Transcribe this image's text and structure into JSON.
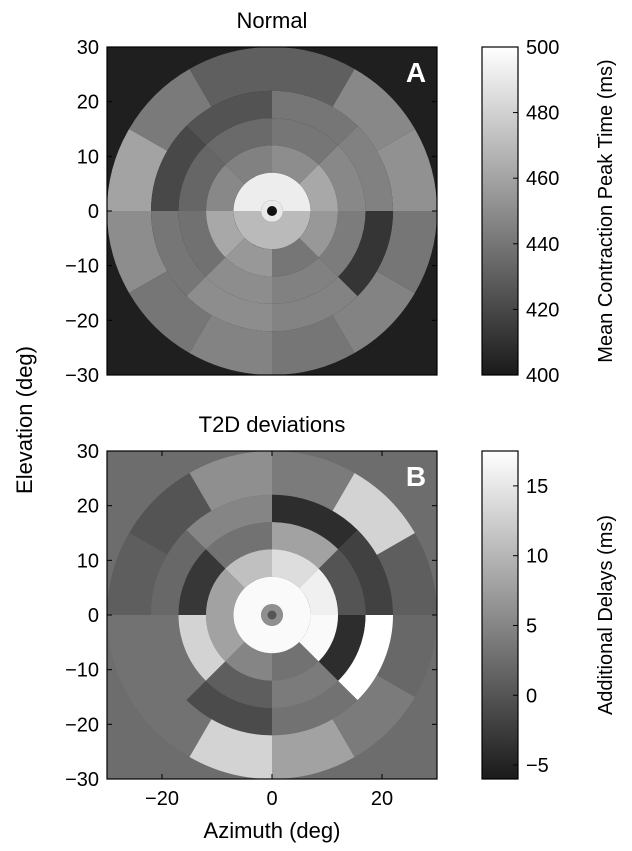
{
  "figure": {
    "shared_ylabel": "Elevation (deg)",
    "shared_xlabel": "Azimuth (deg)"
  },
  "chart_data": [
    {
      "type": "heatmap",
      "title": "Normal",
      "panel_label": "A",
      "xlabel": "",
      "ylabel": "Elevation (deg)",
      "xlim": [
        -30,
        30
      ],
      "ylim": [
        -30,
        30
      ],
      "yticks": [
        "30",
        "20",
        "10",
        "0",
        "−10",
        "−20",
        "−30"
      ],
      "ytick_values": [
        30,
        20,
        10,
        0,
        -10,
        -20,
        -30
      ],
      "background_value": 402,
      "center_dot": true,
      "rings": [
        {
          "r_inner": 0,
          "r_outer": 2,
          "sectors": 1,
          "start_deg": 0,
          "values": [
            490
          ]
        },
        {
          "r_inner": 2,
          "r_outer": 7,
          "sectors": 2,
          "start_deg": 0,
          "values": [
            492,
            470
          ]
        },
        {
          "r_inner": 7,
          "r_outer": 12,
          "sectors": 8,
          "start_deg": 0,
          "values": [
            462,
            450,
            445,
            448,
            462,
            455,
            440,
            455
          ]
        },
        {
          "r_inner": 12,
          "r_outer": 17,
          "sectors": 8,
          "start_deg": 0,
          "values": [
            448,
            440,
            435,
            433,
            438,
            450,
            445,
            443
          ]
        },
        {
          "r_inner": 17,
          "r_outer": 22,
          "sectors": 8,
          "start_deg": 0,
          "values": [
            445,
            440,
            425,
            420,
            440,
            450,
            446,
            412
          ]
        },
        {
          "r_inner": 22,
          "r_outer": 30,
          "sectors": 12,
          "start_deg": 0,
          "values": [
            452,
            448,
            430,
            430,
            442,
            460,
            450,
            440,
            446,
            440,
            446,
            440
          ]
        }
      ],
      "colorbar": {
        "label": "Mean Contraction Peak Time (ms)",
        "min": 400,
        "max": 500,
        "ticks": [
          400,
          420,
          440,
          460,
          480,
          500
        ]
      }
    },
    {
      "type": "heatmap",
      "title": "T2D deviations",
      "panel_label": "B",
      "xlabel": "Azimuth (deg)",
      "ylabel": "Elevation (deg)",
      "xlim": [
        -30,
        30
      ],
      "ylim": [
        -30,
        30
      ],
      "xticks": [
        "−20",
        "0",
        "20"
      ],
      "xtick_values": [
        -20,
        0,
        20
      ],
      "yticks": [
        "30",
        "20",
        "10",
        "0",
        "−10",
        "−20",
        "−30"
      ],
      "ytick_values": [
        30,
        20,
        10,
        0,
        -10,
        -20,
        -30
      ],
      "background_value": 2.5,
      "center_dot": true,
      "rings": [
        {
          "r_inner": 0,
          "r_outer": 2,
          "sectors": 1,
          "start_deg": 0,
          "values": [
            6
          ]
        },
        {
          "r_inner": 2,
          "r_outer": 7,
          "sectors": 2,
          "start_deg": 0,
          "values": [
            17,
            17
          ]
        },
        {
          "r_inner": 7,
          "r_outer": 12,
          "sectors": 8,
          "start_deg": 0,
          "values": [
            16,
            14,
            11,
            8,
            8,
            5,
            3,
            17
          ]
        },
        {
          "r_inner": 12,
          "r_outer": 17,
          "sectors": 8,
          "start_deg": 0,
          "values": [
            0,
            8,
            3,
            -3,
            13,
            1,
            4,
            -4
          ]
        },
        {
          "r_inner": 17,
          "r_outer": 22,
          "sectors": 8,
          "start_deg": 0,
          "values": [
            -2,
            -4,
            5,
            2,
            3,
            -1,
            3,
            18
          ]
        },
        {
          "r_inner": 22,
          "r_outer": 30,
          "sectors": 12,
          "start_deg": 0,
          "values": [
            1,
            13,
            4,
            6,
            0,
            1,
            3,
            3,
            13,
            8,
            4,
            2
          ]
        }
      ],
      "colorbar": {
        "label": "Additional Delays (ms)",
        "min": -6,
        "max": 17.5,
        "ticks": [
          -5,
          0,
          5,
          10,
          15
        ]
      }
    }
  ]
}
